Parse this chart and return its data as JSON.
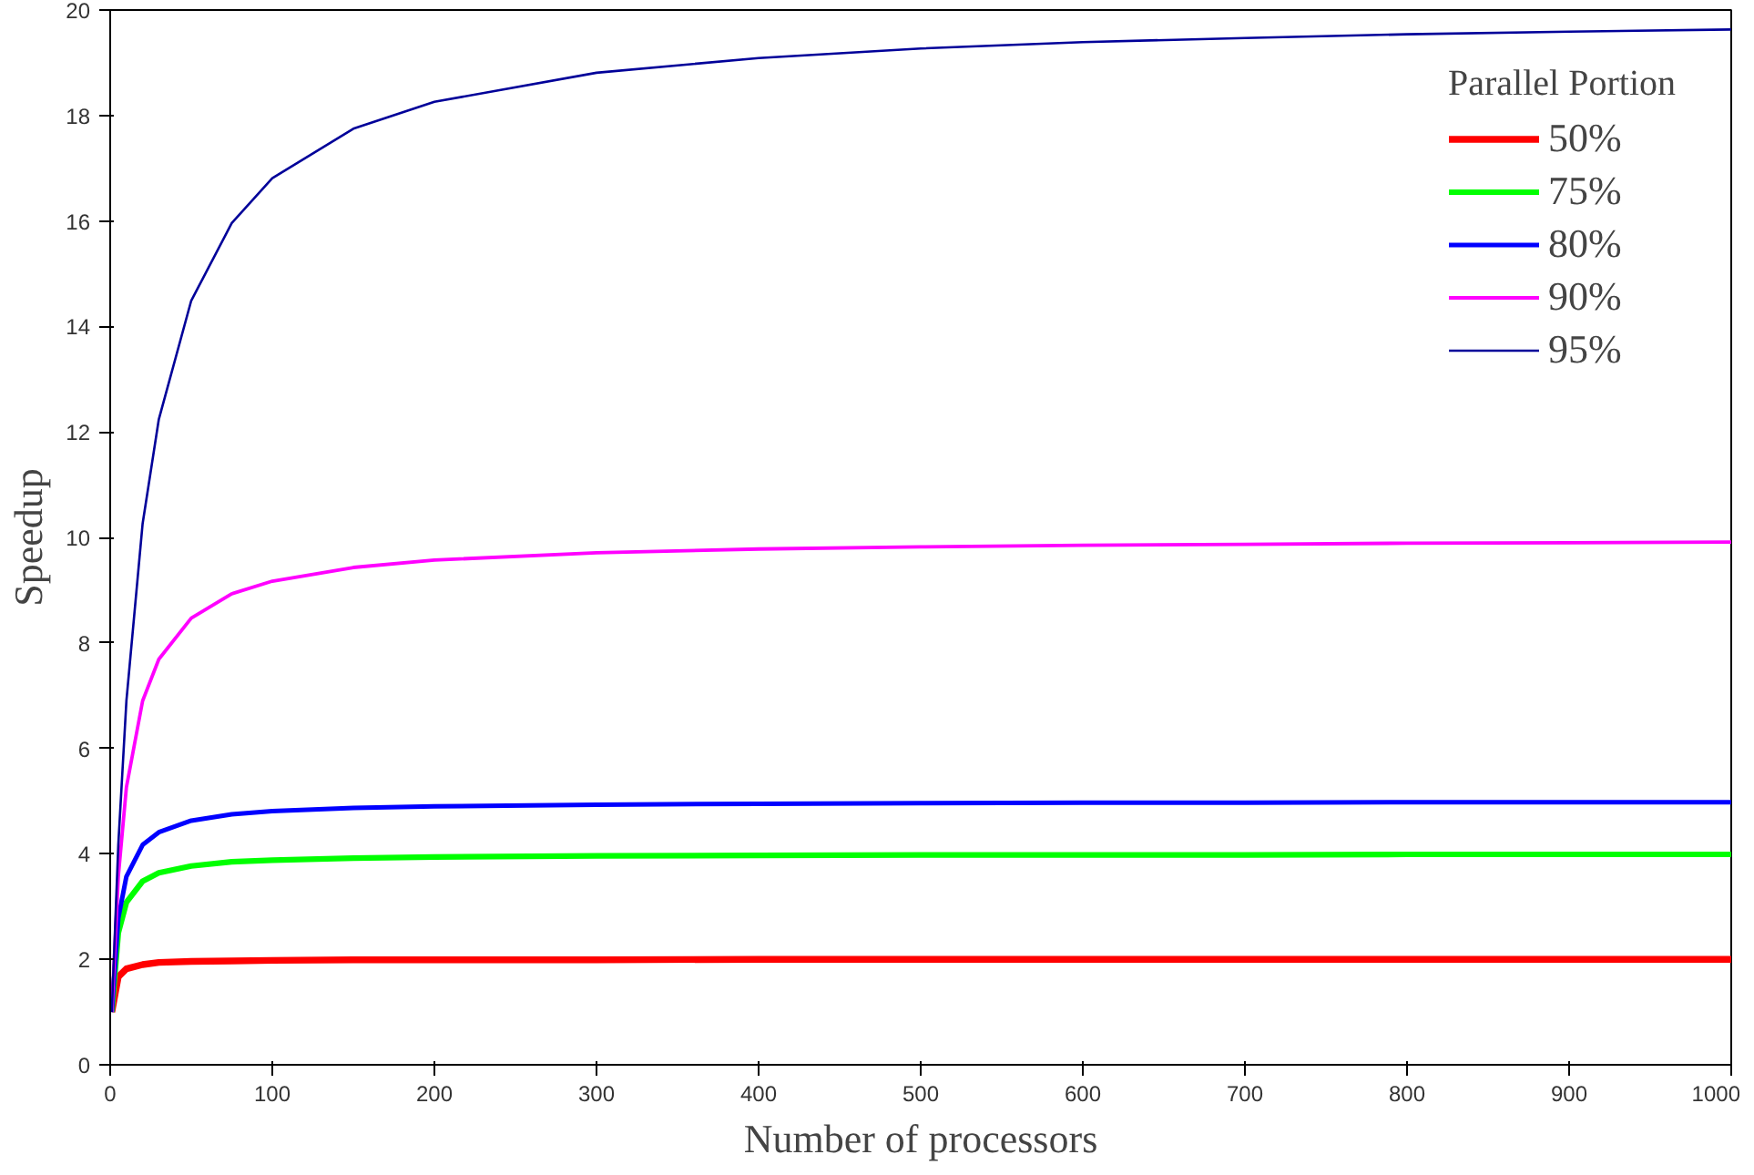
{
  "chart_data": {
    "type": "line",
    "xlabel": "Number of processors",
    "ylabel": "Speedup",
    "legend_title": "Parallel Portion",
    "legend": "top right",
    "grid": false,
    "marker": "none",
    "line_style": "solid",
    "x": [
      1,
      5,
      10,
      20,
      30,
      50,
      75,
      100,
      150,
      200,
      300,
      400,
      500,
      600,
      700,
      800,
      900,
      1000
    ],
    "xlim": [
      0,
      1000
    ],
    "xticks": [
      0,
      100,
      200,
      300,
      400,
      500,
      600,
      700,
      800,
      900,
      1000
    ],
    "ylim": [
      0,
      20
    ],
    "yticks": [
      0,
      2,
      4,
      6,
      8,
      10,
      12,
      14,
      16,
      18,
      20
    ],
    "series": [
      {
        "name": "50%",
        "color": "#ff0000",
        "values": [
          1,
          1.67,
          1.82,
          1.9,
          1.94,
          1.96,
          1.97,
          1.98,
          1.99,
          1.99,
          1.99,
          2.0,
          2.0,
          2.0,
          2.0,
          2.0,
          2.0,
          2.0
        ]
      },
      {
        "name": "75%",
        "color": "#00ff00",
        "values": [
          1,
          2.5,
          3.08,
          3.48,
          3.64,
          3.77,
          3.85,
          3.88,
          3.92,
          3.94,
          3.96,
          3.97,
          3.98,
          3.98,
          3.98,
          3.99,
          3.99,
          3.99
        ]
      },
      {
        "name": "80%",
        "color": "#0000ff",
        "values": [
          1,
          2.78,
          3.57,
          4.17,
          4.41,
          4.63,
          4.75,
          4.81,
          4.87,
          4.9,
          4.93,
          4.95,
          4.96,
          4.97,
          4.97,
          4.98,
          4.98,
          4.98
        ]
      },
      {
        "name": "90%",
        "color": "#ff00ff",
        "values": [
          1,
          3.57,
          5.26,
          6.9,
          7.69,
          8.47,
          8.93,
          9.17,
          9.43,
          9.57,
          9.71,
          9.78,
          9.82,
          9.85,
          9.87,
          9.89,
          9.9,
          9.91
        ]
      },
      {
        "name": "95%",
        "color": "#000099",
        "values": [
          1,
          4.17,
          6.9,
          10.26,
          12.24,
          14.49,
          15.96,
          16.81,
          17.75,
          18.26,
          18.81,
          19.09,
          19.27,
          19.39,
          19.47,
          19.54,
          19.59,
          19.63
        ]
      }
    ]
  }
}
